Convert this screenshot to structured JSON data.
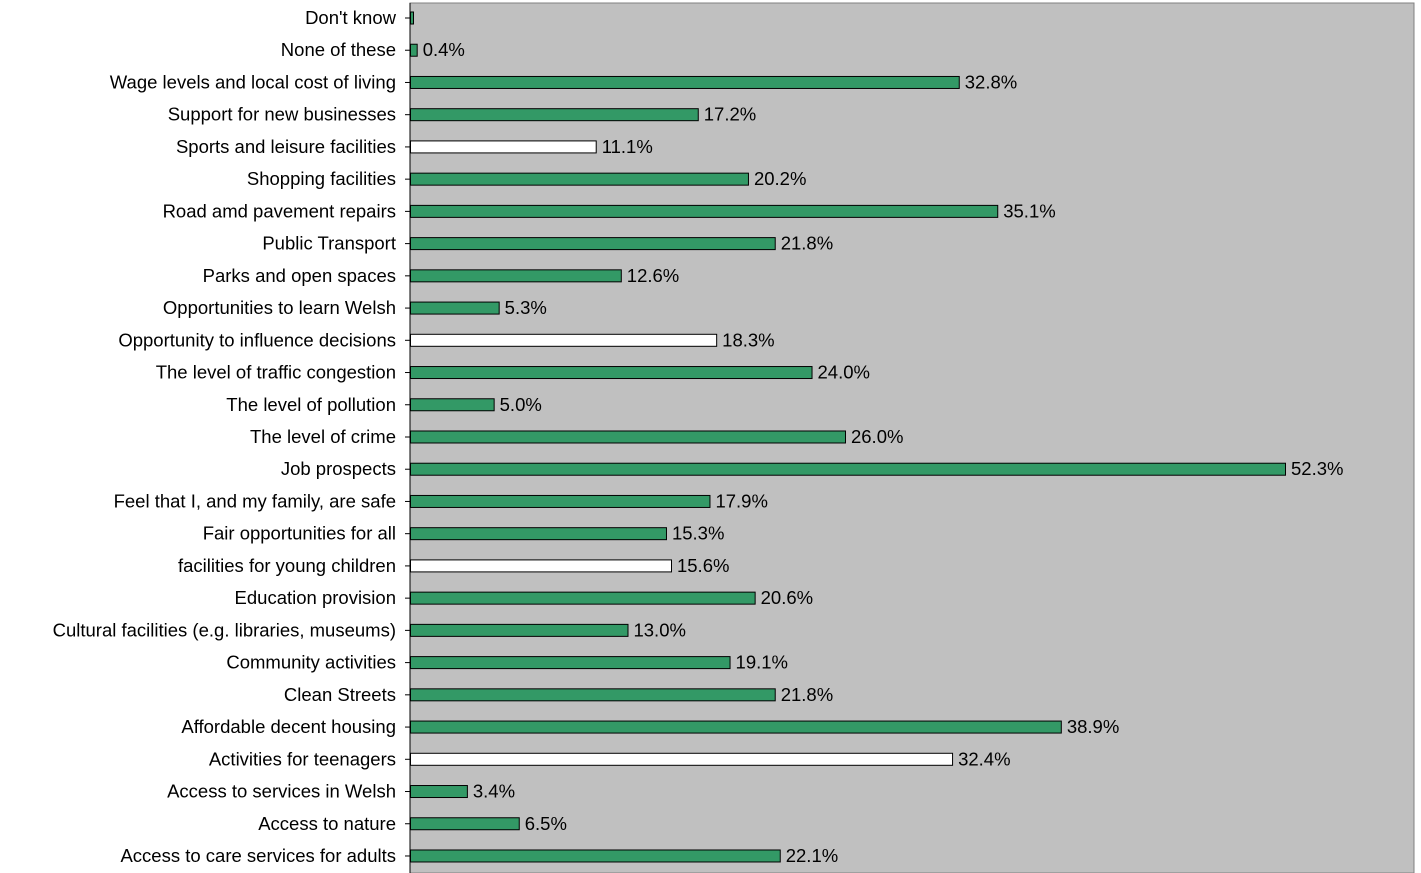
{
  "chart_data": {
    "type": "bar",
    "orientation": "horizontal",
    "title": "",
    "xlabel": "",
    "ylabel": "",
    "xlim": [
      0,
      60
    ],
    "grid": false,
    "legend": "none",
    "colors": {
      "plot_background": "#c0c0c0",
      "filled_bar": "#339966",
      "hollow_bar": "#ffffff",
      "bar_outline": "#000000"
    },
    "bars": [
      {
        "label": "Don't know",
        "value": 0.1,
        "value_label": "",
        "style": "filled"
      },
      {
        "label": "None of these",
        "value": 0.4,
        "value_label": "0.4%",
        "style": "filled"
      },
      {
        "label": "Wage levels and local cost of living",
        "value": 32.8,
        "value_label": "32.8%",
        "style": "filled"
      },
      {
        "label": "Support for new businesses",
        "value": 17.2,
        "value_label": "17.2%",
        "style": "filled"
      },
      {
        "label": "Sports and leisure facilities",
        "value": 11.1,
        "value_label": "11.1%",
        "style": "hollow"
      },
      {
        "label": "Shopping facilities",
        "value": 20.2,
        "value_label": "20.2%",
        "style": "filled"
      },
      {
        "label": "Road amd pavement repairs",
        "value": 35.1,
        "value_label": "35.1%",
        "style": "filled"
      },
      {
        "label": "Public Transport",
        "value": 21.8,
        "value_label": "21.8%",
        "style": "filled"
      },
      {
        "label": "Parks and open spaces",
        "value": 12.6,
        "value_label": "12.6%",
        "style": "filled"
      },
      {
        "label": "Opportunities to learn Welsh",
        "value": 5.3,
        "value_label": "5.3%",
        "style": "filled"
      },
      {
        "label": "Opportunity to influence decisions",
        "value": 18.3,
        "value_label": "18.3%",
        "style": "hollow"
      },
      {
        "label": "The level of traffic congestion",
        "value": 24.0,
        "value_label": "24.0%",
        "style": "filled"
      },
      {
        "label": "The level of pollution",
        "value": 5.0,
        "value_label": "5.0%",
        "style": "filled"
      },
      {
        "label": "The level of crime",
        "value": 26.0,
        "value_label": "26.0%",
        "style": "filled"
      },
      {
        "label": "Job prospects",
        "value": 52.3,
        "value_label": "52.3%",
        "style": "filled"
      },
      {
        "label": "Feel that I, and my family, are safe",
        "value": 17.9,
        "value_label": "17.9%",
        "style": "filled"
      },
      {
        "label": "Fair opportunities for all",
        "value": 15.3,
        "value_label": "15.3%",
        "style": "filled"
      },
      {
        "label": "facilities for young children",
        "value": 15.6,
        "value_label": "15.6%",
        "style": "hollow"
      },
      {
        "label": "Education provision",
        "value": 20.6,
        "value_label": "20.6%",
        "style": "filled"
      },
      {
        "label": "Cultural facilities (e.g. libraries, museums)",
        "value": 13.0,
        "value_label": "13.0%",
        "style": "filled"
      },
      {
        "label": "Community activities",
        "value": 19.1,
        "value_label": "19.1%",
        "style": "filled"
      },
      {
        "label": "Clean Streets",
        "value": 21.8,
        "value_label": "21.8%",
        "style": "filled"
      },
      {
        "label": "Affordable decent housing ",
        "value": 38.9,
        "value_label": "38.9%",
        "style": "filled"
      },
      {
        "label": "Activities for teenagers",
        "value": 32.4,
        "value_label": "32.4%",
        "style": "hollow"
      },
      {
        "label": "Access to services in Welsh",
        "value": 3.4,
        "value_label": "3.4%",
        "style": "filled"
      },
      {
        "label": "Access to nature",
        "value": 6.5,
        "value_label": "6.5%",
        "style": "filled"
      },
      {
        "label": "Access to care services for adults",
        "value": 22.1,
        "value_label": "22.1%",
        "style": "filled"
      }
    ]
  }
}
